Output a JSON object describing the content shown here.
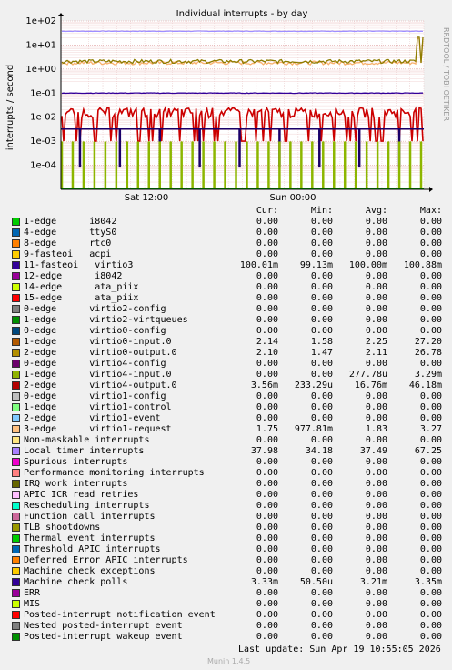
{
  "chart_data": {
    "type": "line",
    "title": "Individual interrupts - by day",
    "ylabel": "interrupts / second",
    "yscale": "log",
    "ylim": [
      1e-05,
      100
    ],
    "y_ticks": [
      "1e+02",
      "1e+01",
      "1e+00",
      "1e-01",
      "1e-02",
      "1e-03",
      "1e-04"
    ],
    "x_ticks": [
      "Sat 12:00",
      "Sun 00:00"
    ],
    "grid": true,
    "series": [
      {
        "name": "Local timer interrupts",
        "color": "#9f8fff",
        "level": 37.5,
        "style": "flat"
      },
      {
        "name": "virtio1-request",
        "color": "#f8b06c",
        "level": 1.83,
        "style": "noisy"
      },
      {
        "name": "virtio0-output.0",
        "color": "#8d7c00",
        "level": 2.11,
        "style": "noisy"
      },
      {
        "name": "11-fasteoi virtio3",
        "color": "#330099",
        "level": 0.1,
        "style": "flat"
      },
      {
        "name": "virtio4-output.0",
        "color": "#cc0000",
        "level": 0.0168,
        "style": "spiky"
      },
      {
        "name": "Machine check polls",
        "color": "#1a0069",
        "level": 0.00321,
        "style": "flat"
      },
      {
        "name": "virtio4-input.0",
        "color": "#8db600",
        "level": 0.000278,
        "style": "bars"
      }
    ]
  },
  "rrd_credit": "RRDTOOL / TOBI OETIKER",
  "header": {
    "name": "",
    "cur": "Cur:",
    "min": "Min:",
    "avg": "Avg:",
    "max": "Max:"
  },
  "legend": [
    {
      "label": "1-edge      i8042",
      "color": "#00cc00",
      "cur": "0.00",
      "min": "0.00",
      "avg": "0.00",
      "max": "0.00"
    },
    {
      "label": "4-edge      ttyS0",
      "color": "#0066b3",
      "cur": "0.00",
      "min": "0.00",
      "avg": "0.00",
      "max": "0.00"
    },
    {
      "label": "8-edge      rtc0",
      "color": "#ff8000",
      "cur": "0.00",
      "min": "0.00",
      "avg": "0.00",
      "max": "0.00"
    },
    {
      "label": "9-fasteoi   acpi",
      "color": "#ffcc00",
      "cur": "0.00",
      "min": "0.00",
      "avg": "0.00",
      "max": "0.00"
    },
    {
      "label": "11-fasteoi   virtio3",
      "color": "#330099",
      "cur": "100.01m",
      "min": "99.13m",
      "avg": "100.00m",
      "max": "100.88m"
    },
    {
      "label": "12-edge      i8042",
      "color": "#990099",
      "cur": "0.00",
      "min": "0.00",
      "avg": "0.00",
      "max": "0.00"
    },
    {
      "label": "14-edge      ata_piix",
      "color": "#ccff00",
      "cur": "0.00",
      "min": "0.00",
      "avg": "0.00",
      "max": "0.00"
    },
    {
      "label": "15-edge      ata_piix",
      "color": "#ff0000",
      "cur": "0.00",
      "min": "0.00",
      "avg": "0.00",
      "max": "0.00"
    },
    {
      "label": "0-edge      virtio2-config",
      "color": "#808080",
      "cur": "0.00",
      "min": "0.00",
      "avg": "0.00",
      "max": "0.00"
    },
    {
      "label": "1-edge      virtio2-virtqueues",
      "color": "#008f00",
      "cur": "0.00",
      "min": "0.00",
      "avg": "0.00",
      "max": "0.00"
    },
    {
      "label": "0-edge      virtio0-config",
      "color": "#00487d",
      "cur": "0.00",
      "min": "0.00",
      "avg": "0.00",
      "max": "0.00"
    },
    {
      "label": "1-edge      virtio0-input.0",
      "color": "#b35a00",
      "cur": "2.14",
      "min": "1.58",
      "avg": "2.25",
      "max": "27.20"
    },
    {
      "label": "2-edge      virtio0-output.0",
      "color": "#b38f00",
      "cur": "2.10",
      "min": "1.47",
      "avg": "2.11",
      "max": "26.78"
    },
    {
      "label": "0-edge      virtio4-config",
      "color": "#6b006b",
      "cur": "0.00",
      "min": "0.00",
      "avg": "0.00",
      "max": "0.00"
    },
    {
      "label": "1-edge      virtio4-input.0",
      "color": "#8fb300",
      "cur": "0.00",
      "min": "0.00",
      "avg": "277.78u",
      "max": "3.29m"
    },
    {
      "label": "2-edge      virtio4-output.0",
      "color": "#b30000",
      "cur": "3.56m",
      "min": "233.29u",
      "avg": "16.76m",
      "max": "46.18m"
    },
    {
      "label": "0-edge      virtio1-config",
      "color": "#bebebe",
      "cur": "0.00",
      "min": "0.00",
      "avg": "0.00",
      "max": "0.00"
    },
    {
      "label": "1-edge      virtio1-control",
      "color": "#80ff80",
      "cur": "0.00",
      "min": "0.00",
      "avg": "0.00",
      "max": "0.00"
    },
    {
      "label": "2-edge      virtio1-event",
      "color": "#80c9ff",
      "cur": "0.00",
      "min": "0.00",
      "avg": "0.00",
      "max": "0.00"
    },
    {
      "label": "3-edge      virtio1-request",
      "color": "#ffc080",
      "cur": "1.75",
      "min": "977.81m",
      "avg": "1.83",
      "max": "3.27"
    },
    {
      "label": "Non-maskable interrupts",
      "color": "#ffe680",
      "cur": "0.00",
      "min": "0.00",
      "avg": "0.00",
      "max": "0.00"
    },
    {
      "label": "Local timer interrupts",
      "color": "#aa80ff",
      "cur": "37.98",
      "min": "34.18",
      "avg": "37.49",
      "max": "67.25"
    },
    {
      "label": "Spurious interrupts",
      "color": "#ee00cc",
      "cur": "0.00",
      "min": "0.00",
      "avg": "0.00",
      "max": "0.00"
    },
    {
      "label": "Performance monitoring interrupts",
      "color": "#ff8080",
      "cur": "0.00",
      "min": "0.00",
      "avg": "0.00",
      "max": "0.00"
    },
    {
      "label": "IRQ work interrupts",
      "color": "#666600",
      "cur": "0.00",
      "min": "0.00",
      "avg": "0.00",
      "max": "0.00"
    },
    {
      "label": "APIC ICR read retries",
      "color": "#ffbfff",
      "cur": "0.00",
      "min": "0.00",
      "avg": "0.00",
      "max": "0.00"
    },
    {
      "label": "Rescheduling interrupts",
      "color": "#00ffcc",
      "cur": "0.00",
      "min": "0.00",
      "avg": "0.00",
      "max": "0.00"
    },
    {
      "label": "Function call interrupts",
      "color": "#cc6699",
      "cur": "0.00",
      "min": "0.00",
      "avg": "0.00",
      "max": "0.00"
    },
    {
      "label": "TLB shootdowns",
      "color": "#999900",
      "cur": "0.00",
      "min": "0.00",
      "avg": "0.00",
      "max": "0.00"
    },
    {
      "label": "Thermal event interrupts",
      "color": "#00cc00",
      "cur": "0.00",
      "min": "0.00",
      "avg": "0.00",
      "max": "0.00"
    },
    {
      "label": "Threshold APIC interrupts",
      "color": "#0066b3",
      "cur": "0.00",
      "min": "0.00",
      "avg": "0.00",
      "max": "0.00"
    },
    {
      "label": "Deferred Error APIC interrupts",
      "color": "#ff8000",
      "cur": "0.00",
      "min": "0.00",
      "avg": "0.00",
      "max": "0.00"
    },
    {
      "label": "Machine check exceptions",
      "color": "#ffcc00",
      "cur": "0.00",
      "min": "0.00",
      "avg": "0.00",
      "max": "0.00"
    },
    {
      "label": "Machine check polls",
      "color": "#330099",
      "cur": "3.33m",
      "min": "50.50u",
      "avg": "3.21m",
      "max": "3.35m"
    },
    {
      "label": "ERR",
      "color": "#990099",
      "cur": "0.00",
      "min": "0.00",
      "avg": "0.00",
      "max": "0.00"
    },
    {
      "label": "MIS",
      "color": "#ccff00",
      "cur": "0.00",
      "min": "0.00",
      "avg": "0.00",
      "max": "0.00"
    },
    {
      "label": "Posted-interrupt notification event",
      "color": "#ff0000",
      "cur": "0.00",
      "min": "0.00",
      "avg": "0.00",
      "max": "0.00"
    },
    {
      "label": "Nested posted-interrupt event",
      "color": "#808080",
      "cur": "0.00",
      "min": "0.00",
      "avg": "0.00",
      "max": "0.00"
    },
    {
      "label": "Posted-interrupt wakeup event",
      "color": "#008f00",
      "cur": "0.00",
      "min": "0.00",
      "avg": "0.00",
      "max": "0.00"
    }
  ],
  "last_update": "Last update:  Sun Apr 19 10:55:05 2026",
  "munin_version": "Munin 1.4.5"
}
